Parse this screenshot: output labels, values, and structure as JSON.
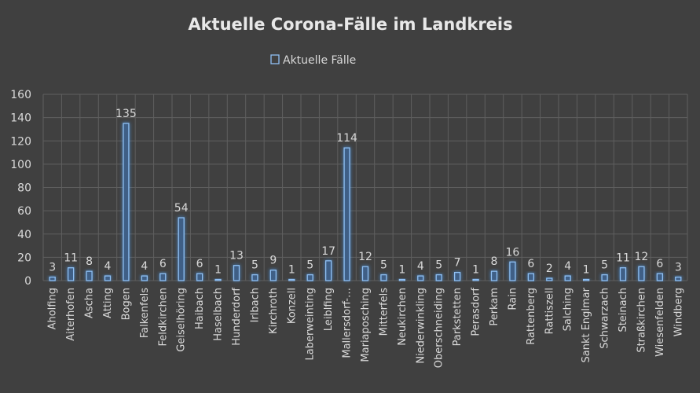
{
  "chart_data": {
    "type": "bar",
    "title": "Aktuelle Corona-Fälle im Landkreis",
    "xlabel": "",
    "ylabel": "",
    "ylim": [
      0,
      160
    ],
    "yticks": [
      0,
      20,
      40,
      60,
      80,
      100,
      120,
      140,
      160
    ],
    "grid": true,
    "legend_position": "top",
    "categories": [
      "Aholfing",
      "Aiterhofen",
      "Ascha",
      "Atting",
      "Bogen",
      "Falkenfels",
      "Feldkirchen",
      "Geiselhöring",
      "Haibach",
      "Haselbach",
      "Hunderdorf",
      "Irlbach",
      "Kirchroth",
      "Konzell",
      "Laberweinting",
      "Leiblfing",
      "Mallersdorf-…",
      "Mariaposching",
      "Mitterfels",
      "Neukirchen",
      "Niederwinkling",
      "Oberschneiding",
      "Parkstetten",
      "Perasdorf",
      "Perkam",
      "Rain",
      "Rattenberg",
      "Rattiszell",
      "Salching",
      "Sankt Englmar",
      "Schwarzach",
      "Steinach",
      "Straßkirchen",
      "Wiesenfelden",
      "Windberg"
    ],
    "series": [
      {
        "name": "Aktuelle Fälle",
        "values": [
          3,
          11,
          8,
          4,
          135,
          4,
          6,
          54,
          6,
          1,
          13,
          5,
          9,
          1,
          5,
          17,
          114,
          12,
          5,
          1,
          4,
          5,
          7,
          1,
          8,
          16,
          6,
          2,
          4,
          1,
          5,
          11,
          12,
          6,
          3
        ]
      }
    ]
  },
  "colors": {
    "background": "#404040",
    "bar_fill": "#3f5f86",
    "bar_edge": "#8fc0f4",
    "bar_glow": "#4a8fd8",
    "text": "#d9d9d9",
    "grid": "#5f5f5f"
  }
}
